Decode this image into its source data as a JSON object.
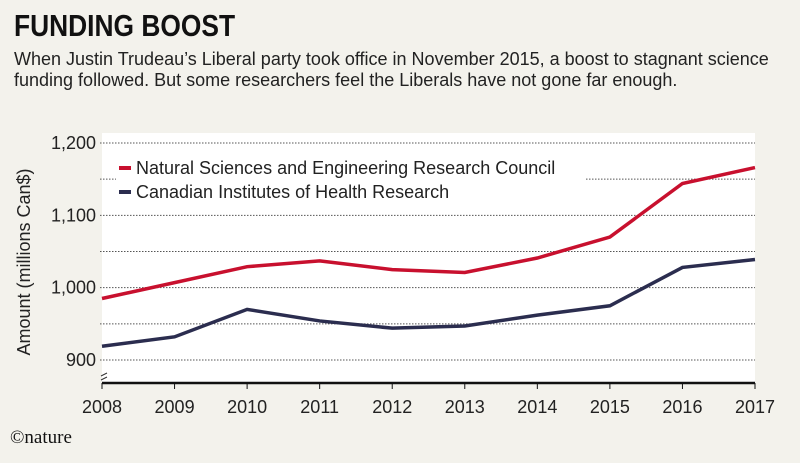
{
  "title": "FUNDING BOOST",
  "subtitle": "When Justin Trudeau’s Liberal party took office in November 2015, a boost to stagnant science funding followed. But some researchers feel the Liberals have not gone far enough.",
  "credit": "©nature",
  "chart_data": {
    "type": "line",
    "title": "",
    "xlabel": "",
    "ylabel": "Amount (millions Can$)",
    "x": [
      2008,
      2009,
      2010,
      2011,
      2012,
      2013,
      2014,
      2015,
      2016,
      2017
    ],
    "ylim": [
      870,
      1200
    ],
    "yticks": [
      900,
      1000,
      1100,
      1200
    ],
    "ytick_labels": [
      "900",
      "1,000",
      "1,100",
      "1,200"
    ],
    "grid": true,
    "axis_break": true,
    "legend": "top-left",
    "series": [
      {
        "name": "Natural Sciences and Engineering Research Council",
        "color": "#c8102e",
        "values": [
          985,
          1007,
          1029,
          1037,
          1025,
          1021,
          1041,
          1070,
          1144,
          1166
        ]
      },
      {
        "name": "Canadian Institutes of Health Research",
        "color": "#2b2d4f",
        "values": [
          919,
          932,
          970,
          954,
          944,
          947,
          962,
          975,
          1028,
          1039
        ]
      }
    ]
  }
}
